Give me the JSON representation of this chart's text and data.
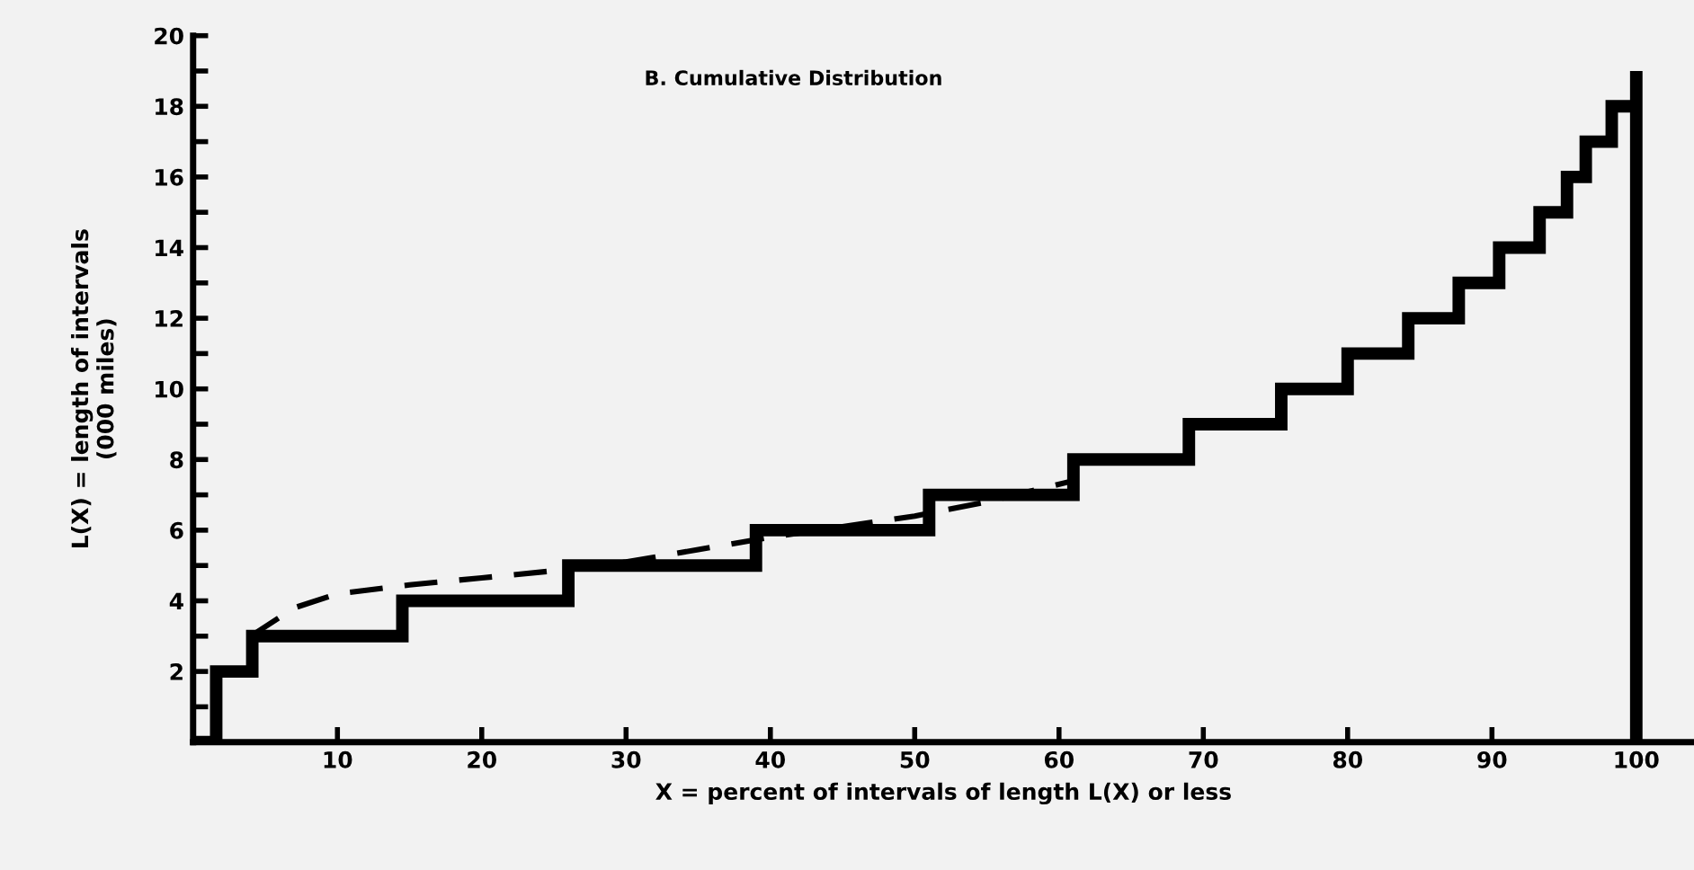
{
  "chart_data": {
    "type": "step",
    "title": "B. Cumulative Distribution",
    "xlabel": "X = percent of intervals of length L(X) or less",
    "ylabel": "L(X) = length of intervals\n(000 miles)",
    "xlim": [
      0,
      104
    ],
    "xticks": [
      10,
      20,
      30,
      40,
      50,
      60,
      70,
      80,
      90,
      100
    ],
    "ylim": [
      0,
      20
    ],
    "yticks": [
      {
        "value": 1,
        "label": null
      },
      2,
      {
        "value": 3,
        "label": null
      },
      4,
      {
        "value": 5,
        "label": null
      },
      6,
      {
        "value": 7,
        "label": null
      },
      8,
      {
        "value": 9,
        "label": null
      },
      10,
      {
        "value": 11,
        "label": null
      },
      12,
      {
        "value": 13,
        "label": null
      },
      14,
      {
        "value": 15,
        "label": null
      },
      16,
      {
        "value": 17,
        "label": null
      },
      18,
      {
        "value": 19,
        "label": null
      },
      20
    ],
    "grid": false,
    "legend": false,
    "series": [
      {
        "color": "#000000",
        "line_style": "solid",
        "x": [
          0,
          1.6,
          4.1,
          14.5,
          26,
          39,
          51,
          61,
          69,
          75.4,
          80,
          84.2,
          87.7,
          90.5,
          93.3,
          95.2,
          96.5,
          98.3,
          100,
          100
        ],
        "values": [
          0,
          2,
          3,
          4,
          5,
          6,
          7,
          8,
          9,
          10,
          11,
          12,
          13,
          14,
          15,
          16,
          17,
          18,
          19,
          0
        ]
      },
      {
        "type": "line",
        "color": "#000000",
        "line_style": "dashed",
        "x": [
          4,
          7,
          10,
          15,
          20,
          25,
          30,
          35,
          40,
          45,
          50,
          55,
          61
        ],
        "values": [
          3,
          3.8,
          4.2,
          4.45,
          4.65,
          4.85,
          5.1,
          5.45,
          5.8,
          6.1,
          6.4,
          6.8,
          7.4
        ]
      }
    ]
  }
}
